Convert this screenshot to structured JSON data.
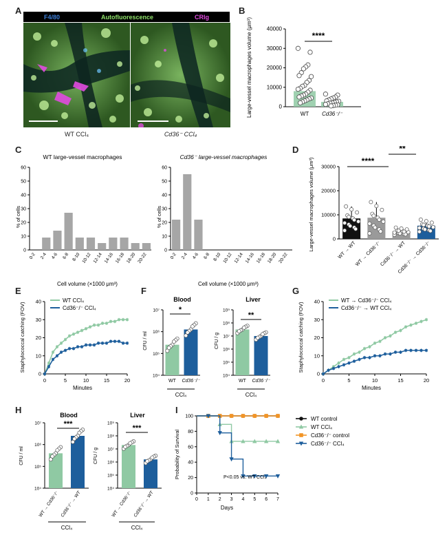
{
  "panels": {
    "A": {
      "label": "A",
      "header": [
        {
          "text": "F4/80",
          "color": "#3d7fd9"
        },
        {
          "text": "Autofluorescence",
          "color": "#8fe06a"
        },
        {
          "text": "CRIg",
          "color": "#e14be0"
        }
      ],
      "caption_left": "WT CCl₄",
      "caption_right": "Cd36⁻ CCl₄"
    },
    "B": {
      "label": "B",
      "ylabel": "Large-vessel macrophages volume (μm³)",
      "sig": "****"
    },
    "C": {
      "label": "C",
      "title_left": "WT large-vessel macrophages",
      "title_right": "Cd36⁻ large-vessel macrophages",
      "ylabel": "% of cells",
      "xlabel": "Cell volume (×1000 μm³)"
    },
    "D": {
      "label": "D",
      "ylabel": "Large-vessel macrophages volume (μm³)",
      "sig1": "****",
      "sig2": "**"
    },
    "E": {
      "label": "E",
      "ylabel": "Staphylococcal catching (FOV)",
      "xlabel": "Minutes"
    },
    "F": {
      "label": "F",
      "title_left": "Blood",
      "title_right": "Liver",
      "ylabel_left": "CFU / ml",
      "ylabel_right": "CFU / g",
      "sig_left": "*",
      "sig_right": "**",
      "group": "CCl₄"
    },
    "G": {
      "label": "G",
      "ylabel": "Staphylococcal catching (FOV)",
      "xlabel": "Minutes"
    },
    "H": {
      "label": "H",
      "title_left": "Blood",
      "title_right": "Liver",
      "ylabel_left": "CFU / ml",
      "ylabel_right": "CFU / g",
      "sig_left": "***",
      "sig_right": "***",
      "group": "CCl₄"
    },
    "I": {
      "label": "I",
      "ylabel": "Probability of Survival",
      "xlabel": "Days",
      "note": "P<0.05 vs. WT CCl₄"
    }
  },
  "chart_data": [
    {
      "panel": "B",
      "type": "scatter",
      "categories": [
        "WT",
        "Cd36⁻/⁻"
      ],
      "bar_means": [
        8000,
        2500
      ],
      "ylim": [
        0,
        40000
      ],
      "yticks": [
        0,
        10000,
        20000,
        30000,
        40000
      ],
      "points": [
        [
          30000,
          28000,
          21500,
          20500,
          19500,
          17500,
          16000,
          15500,
          13500,
          12500,
          11000,
          10500,
          9500,
          9000,
          8500,
          7500,
          6500,
          6000,
          5500,
          5000,
          4500,
          4000,
          3500,
          3000,
          2500,
          2000
        ],
        [
          6500,
          6000,
          5000,
          4500,
          4000,
          3500,
          3000,
          2800,
          2500,
          2300,
          2000,
          1800,
          1500,
          1200,
          1000,
          800,
          600,
          400
        ]
      ]
    },
    {
      "panel": "C-left",
      "type": "bar",
      "categories": [
        "0-2",
        "2-4",
        "4-6",
        "6-8",
        "8-10",
        "10-12",
        "12-14",
        "14-16",
        "16-18",
        "18-20",
        "20-22"
      ],
      "values": [
        0,
        9,
        14,
        27,
        9,
        9,
        5,
        9,
        9,
        5,
        5
      ],
      "ylim": [
        0,
        60
      ],
      "yticks": [
        0,
        10,
        20,
        30,
        40,
        50,
        60
      ]
    },
    {
      "panel": "C-right",
      "type": "bar",
      "categories": [
        "0-2",
        "2-4",
        "4-6",
        "6-8",
        "8-10",
        "10-12",
        "12-14",
        "14-16",
        "16-18",
        "18-20",
        "20-22"
      ],
      "values": [
        22,
        55,
        22,
        0,
        0,
        0,
        0,
        0,
        0,
        0,
        0
      ],
      "ylim": [
        0,
        60
      ],
      "yticks": [
        0,
        10,
        20,
        30,
        40,
        50,
        60
      ]
    },
    {
      "panel": "D",
      "type": "bar",
      "categories": [
        "WT → WT",
        "WT → Cd36⁻/⁻",
        "Cd36⁻/⁻ → WT",
        "Cd36⁻/⁻ → Cd36⁻/⁻"
      ],
      "values": [
        8500,
        8800,
        3200,
        5500
      ],
      "errors": [
        5000,
        6500,
        1500,
        2500
      ],
      "colors": [
        "#111111",
        "#9a9a9a",
        "#9a9a9a",
        "#1d5e9c"
      ],
      "ylim": [
        0,
        30000
      ],
      "yticks": [
        0,
        10000,
        20000,
        30000
      ]
    },
    {
      "panel": "E",
      "type": "line",
      "x": [
        0,
        1,
        2,
        3,
        4,
        5,
        6,
        7,
        8,
        9,
        10,
        11,
        12,
        13,
        14,
        15,
        16,
        17,
        18,
        19,
        20
      ],
      "series": [
        {
          "name": "WT CCl₄",
          "color": "#8fc9a3",
          "values": [
            0,
            6,
            12,
            15,
            17,
            19,
            21,
            22,
            23,
            24,
            25,
            26,
            27,
            27,
            28,
            28,
            29,
            29,
            30,
            30,
            30
          ]
        },
        {
          "name": "Cd36⁻/⁻ CCl₄",
          "color": "#1d5e9c",
          "values": [
            0,
            4,
            8,
            10,
            12,
            13,
            14,
            14,
            15,
            15,
            16,
            16,
            16,
            17,
            17,
            17,
            18,
            18,
            18,
            17,
            17
          ]
        }
      ],
      "xlim": [
        0,
        20
      ],
      "ylim": [
        0,
        40
      ],
      "xticks": [
        0,
        5,
        10,
        15,
        20
      ],
      "yticks": [
        0,
        10,
        20,
        30,
        40
      ]
    },
    {
      "panel": "F-blood",
      "type": "bar",
      "log": true,
      "categories": [
        "WT",
        "Cd36⁻/⁻"
      ],
      "values": [
        5.4,
        6.1
      ],
      "colors": [
        "#8fc9a3",
        "#1d5e9c"
      ],
      "ylim": [
        4,
        7
      ],
      "yticks": [
        4,
        5,
        6,
        7
      ],
      "tick_labels": [
        "10⁴",
        "10⁵",
        "10⁶",
        "10⁷"
      ]
    },
    {
      "panel": "F-liver",
      "type": "bar",
      "log": true,
      "categories": [
        "WT",
        "Cd36⁻/⁻"
      ],
      "values": [
        7.5,
        7.0
      ],
      "colors": [
        "#8fc9a3",
        "#1d5e9c"
      ],
      "ylim": [
        4,
        9
      ],
      "yticks": [
        4,
        5,
        6,
        7,
        8,
        9
      ],
      "tick_labels": [
        "10⁴",
        "10⁵",
        "10⁶",
        "10⁷",
        "10⁸",
        "10⁹"
      ]
    },
    {
      "panel": "G",
      "type": "line",
      "x": [
        0,
        1,
        2,
        3,
        4,
        5,
        6,
        7,
        8,
        9,
        10,
        11,
        12,
        13,
        14,
        15,
        16,
        17,
        18,
        19,
        20
      ],
      "series": [
        {
          "name": "WT → Cd36⁻/⁻ CCl₄",
          "color": "#8fc9a3",
          "values": [
            0,
            2,
            4,
            6,
            8,
            9,
            11,
            12,
            14,
            15,
            17,
            18,
            20,
            21,
            23,
            24,
            26,
            27,
            28,
            29,
            30
          ]
        },
        {
          "name": "Cd36⁻/⁻ → WT CCl₄",
          "color": "#1d5e9c",
          "values": [
            0,
            2,
            3,
            4,
            5,
            6,
            7,
            8,
            9,
            9,
            10,
            10,
            11,
            11,
            12,
            12,
            13,
            13,
            13,
            13,
            13
          ]
        }
      ],
      "xlim": [
        0,
        20
      ],
      "ylim": [
        0,
        40
      ],
      "xticks": [
        0,
        5,
        10,
        15,
        20
      ],
      "yticks": [
        0,
        10,
        20,
        30,
        40
      ]
    },
    {
      "panel": "H-blood",
      "type": "bar",
      "log": true,
      "categories": [
        "WT → Cd36⁻/⁻",
        "Cd36⁻/⁻ → WT"
      ],
      "values": [
        5.6,
        6.4
      ],
      "colors": [
        "#8fc9a3",
        "#1d5e9c"
      ],
      "ylim": [
        4,
        7
      ],
      "yticks": [
        4,
        5,
        6,
        7
      ],
      "tick_labels": [
        "10⁴",
        "10⁵",
        "10⁶",
        "10⁷"
      ]
    },
    {
      "panel": "H-liver",
      "type": "bar",
      "log": true,
      "categories": [
        "WT → Cd36⁻/⁻",
        "Cd36⁻/⁻ → WT"
      ],
      "values": [
        7.3,
        6.2
      ],
      "colors": [
        "#8fc9a3",
        "#1d5e9c"
      ],
      "ylim": [
        4,
        9
      ],
      "yticks": [
        4,
        5,
        6,
        7,
        8,
        9
      ],
      "tick_labels": [
        "10⁴",
        "10⁵",
        "10⁶",
        "10⁷",
        "10⁸",
        "10⁹"
      ]
    },
    {
      "panel": "I",
      "type": "line",
      "step": true,
      "x": [
        0,
        1,
        2,
        3,
        4,
        5,
        6,
        7
      ],
      "series": [
        {
          "name": "WT control",
          "color": "#111111",
          "marker": "circle",
          "values": [
            100,
            100,
            100,
            100,
            100,
            100,
            100,
            100
          ]
        },
        {
          "name": "WT CCl₄",
          "color": "#8fc9a3",
          "marker": "triangle-up",
          "values": [
            100,
            100,
            89,
            67,
            67,
            67,
            67,
            67
          ]
        },
        {
          "name": "Cd36⁻/⁻ control",
          "color": "#f29425",
          "marker": "square",
          "values": [
            100,
            100,
            100,
            100,
            100,
            100,
            100,
            100
          ]
        },
        {
          "name": "Cd36⁻/⁻ CCl₄",
          "color": "#1d5e9c",
          "marker": "triangle-down",
          "values": [
            100,
            100,
            78,
            44,
            22,
            22,
            22,
            22
          ]
        }
      ],
      "xlim": [
        0,
        7
      ],
      "ylim": [
        0,
        100
      ],
      "xticks": [
        0,
        1,
        2,
        3,
        4,
        5,
        6,
        7
      ],
      "yticks": [
        0,
        20,
        40,
        60,
        80,
        100
      ]
    }
  ]
}
